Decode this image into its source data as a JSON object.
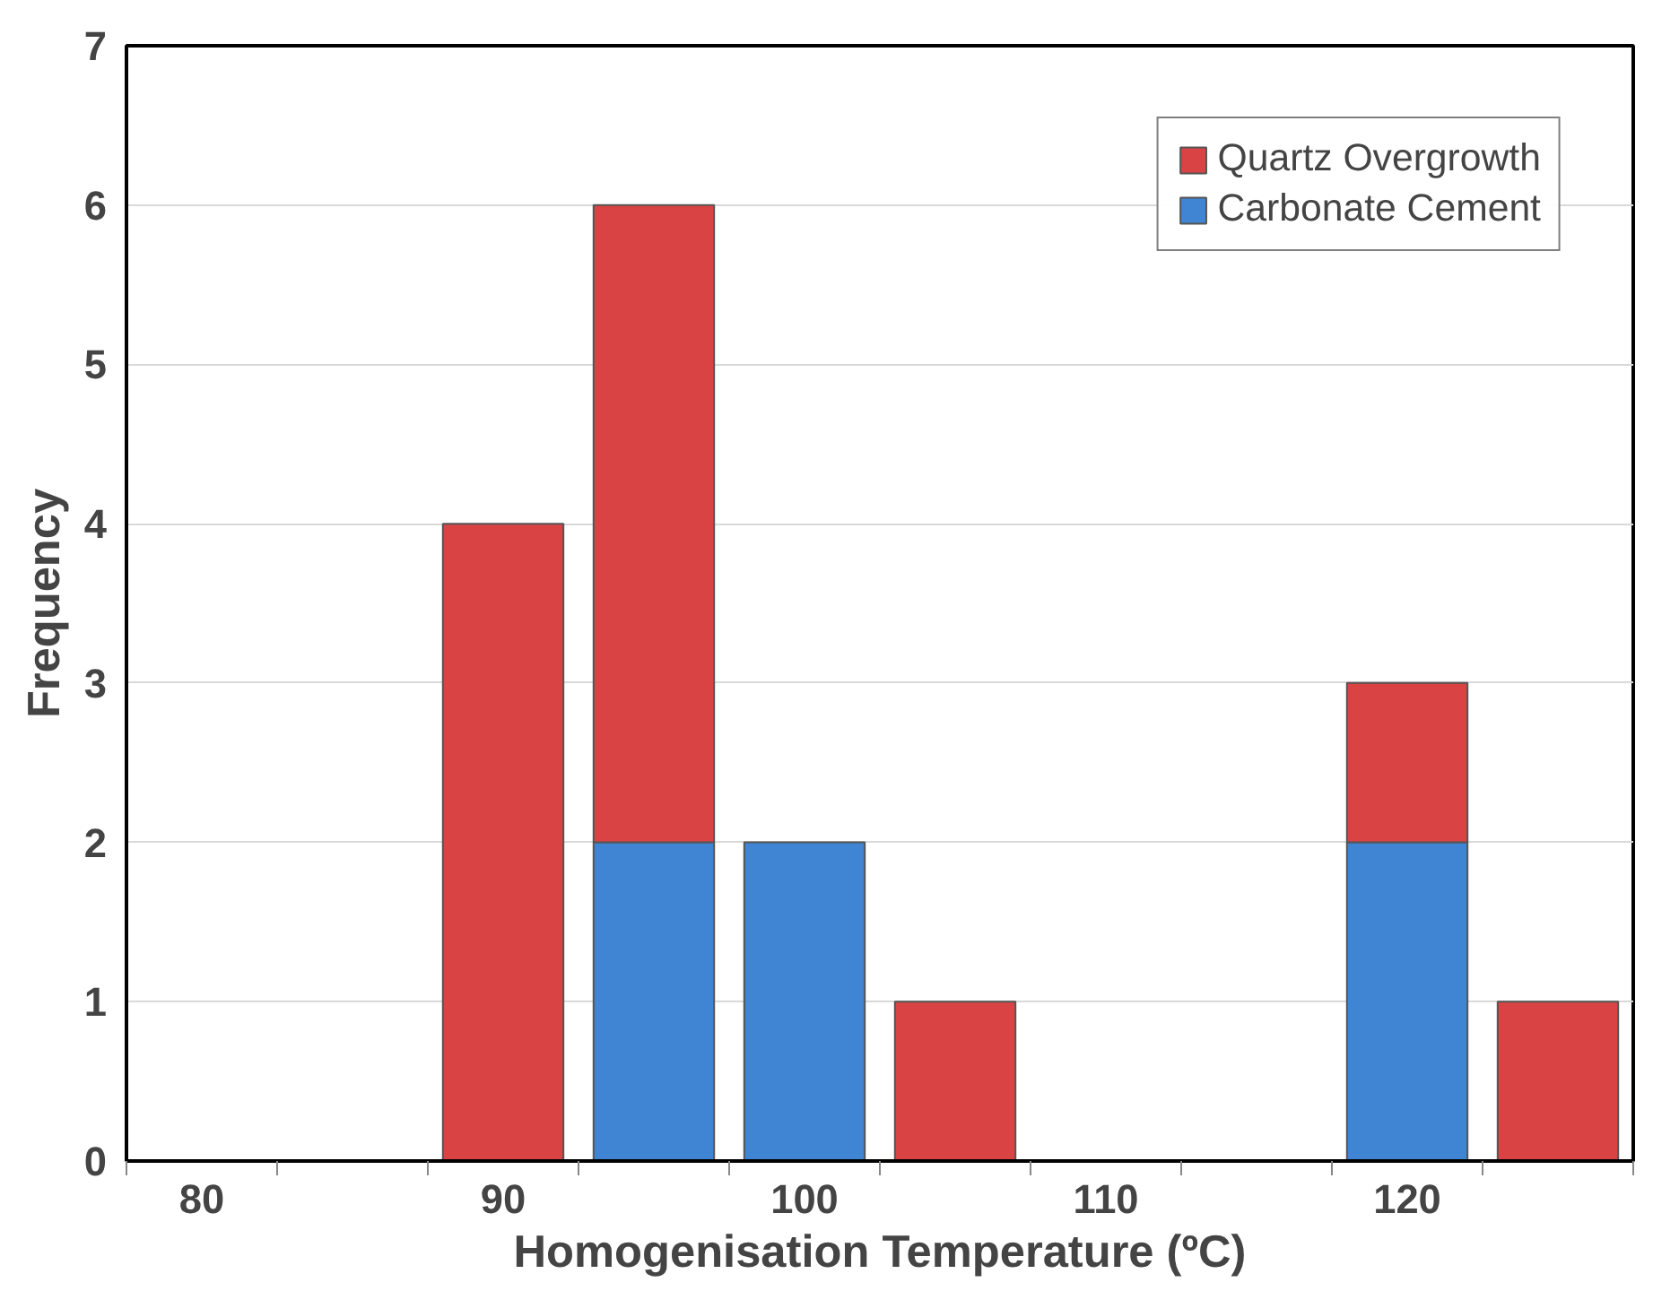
{
  "chart_data": {
    "type": "bar",
    "stacked": true,
    "xlabel": "Homogenisation Temperature (ºC)",
    "ylabel": "Frequency",
    "categories": [
      "80",
      null,
      "90",
      null,
      "100",
      null,
      "110",
      null,
      "120",
      null
    ],
    "series": [
      {
        "name": "Carbonate Cement",
        "color": "#3f85d3",
        "values": [
          null,
          null,
          null,
          2,
          2,
          null,
          null,
          null,
          2,
          null
        ]
      },
      {
        "name": "Quartz Overgrowth",
        "color": "#d94343",
        "values": [
          null,
          null,
          4,
          4,
          null,
          1,
          null,
          null,
          1,
          1
        ]
      }
    ],
    "ylim": [
      0,
      7
    ],
    "yticks": [
      0,
      1,
      2,
      3,
      4,
      5,
      6,
      7
    ],
    "grid": "y",
    "legend": "top right"
  }
}
